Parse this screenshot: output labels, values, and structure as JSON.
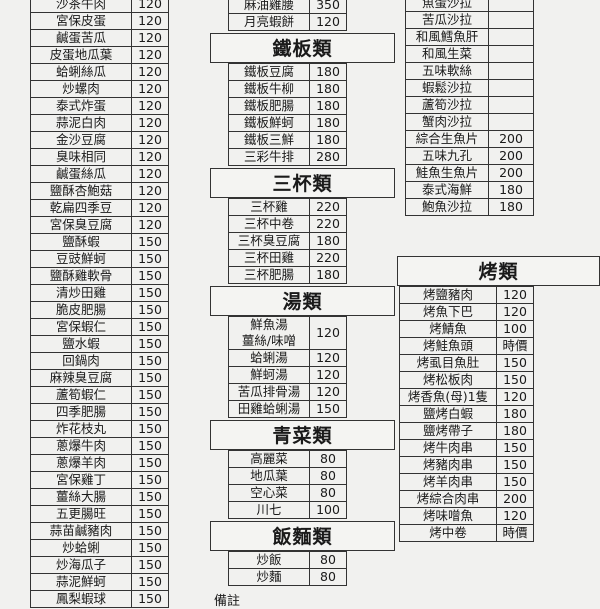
{
  "left": {
    "items": [
      {
        "name": "沙茶牛肉",
        "price": 120
      },
      {
        "name": "宮保皮蛋",
        "price": 120
      },
      {
        "name": "鹹蛋苦瓜",
        "price": 120
      },
      {
        "name": "皮蛋地瓜葉",
        "price": 120
      },
      {
        "name": "蛤蜊絲瓜",
        "price": 120
      },
      {
        "name": "炒螺肉",
        "price": 120
      },
      {
        "name": "泰式炸蛋",
        "price": 120
      },
      {
        "name": "蒜泥白肉",
        "price": 120
      },
      {
        "name": "金沙豆腐",
        "price": 120
      },
      {
        "name": "臭味相同",
        "price": 120
      },
      {
        "name": "鹹蛋絲瓜",
        "price": 120
      },
      {
        "name": "鹽酥杏鮑菇",
        "price": 120
      },
      {
        "name": "乾扁四季豆",
        "price": 120
      },
      {
        "name": "宮保臭豆腐",
        "price": 120
      },
      {
        "name": "鹽酥蝦",
        "price": 150
      },
      {
        "name": "豆豉鮮蚵",
        "price": 150
      },
      {
        "name": "鹽酥雞軟骨",
        "price": 150
      },
      {
        "name": "清炒田雞",
        "price": 150
      },
      {
        "name": "脆皮肥腸",
        "price": 150
      },
      {
        "name": "宮保蝦仁",
        "price": 150
      },
      {
        "name": "鹽水蝦",
        "price": 150
      },
      {
        "name": "回鍋肉",
        "price": 150
      },
      {
        "name": "麻辣臭豆腐",
        "price": 150
      },
      {
        "name": "蘆筍蝦仁",
        "price": 150
      },
      {
        "name": "四季肥腸",
        "price": 150
      },
      {
        "name": "炸花枝丸",
        "price": 150
      },
      {
        "name": "蔥爆牛肉",
        "price": 150
      },
      {
        "name": "蔥爆羊肉",
        "price": 150
      },
      {
        "name": "宮保雞丁",
        "price": 150
      },
      {
        "name": "薑絲大腸",
        "price": 150
      },
      {
        "name": "五更腸旺",
        "price": 150
      },
      {
        "name": "蒜苗鹹豬肉",
        "price": 150
      },
      {
        "name": "炒蛤蜊",
        "price": 150
      },
      {
        "name": "炒海瓜子",
        "price": 150
      },
      {
        "name": "蒜泥鮮蚵",
        "price": 150
      },
      {
        "name": "鳳梨蝦球",
        "price": 150
      }
    ]
  },
  "middle": {
    "top_items": [
      {
        "name": "麻油雞腰",
        "price": 350
      },
      {
        "name": "月亮蝦餅",
        "price": 120
      }
    ],
    "sections": [
      {
        "title": "鐵板類",
        "items": [
          {
            "name": "鐵板豆腐",
            "price": 180
          },
          {
            "name": "鐵板牛柳",
            "price": 180
          },
          {
            "name": "鐵板肥腸",
            "price": 180
          },
          {
            "name": "鐵板鮮蚵",
            "price": 180
          },
          {
            "name": "鐵板三鮮",
            "price": 180
          },
          {
            "name": "三彩牛排",
            "price": 280
          }
        ]
      },
      {
        "title": "三杯類",
        "items": [
          {
            "name": "三杯雞",
            "price": 220
          },
          {
            "name": "三杯中卷",
            "price": 220
          },
          {
            "name": "三杯臭豆腐",
            "price": 180
          },
          {
            "name": "三杯田雞",
            "price": 220
          },
          {
            "name": "三杯肥腸",
            "price": 180
          }
        ]
      },
      {
        "title": "湯類",
        "items": [
          {
            "name": "鮮魚湯",
            "sub": "薑絲/味噌",
            "price": 120
          },
          {
            "name": "蛤蜊湯",
            "price": 120
          },
          {
            "name": "鮮蚵湯",
            "price": 120
          },
          {
            "name": "苦瓜排骨湯",
            "price": 120
          },
          {
            "name": "田雞蛤蜊湯",
            "price": 150
          }
        ]
      },
      {
        "title": "青菜類",
        "items": [
          {
            "name": "高麗菜",
            "price": 80
          },
          {
            "name": "地瓜葉",
            "price": 80
          },
          {
            "name": "空心菜",
            "price": 80
          },
          {
            "name": "川七",
            "price": 100
          }
        ]
      },
      {
        "title": "飯麵類",
        "items": [
          {
            "name": "炒飯",
            "price": 80
          },
          {
            "name": "炒麵",
            "price": 80
          }
        ]
      }
    ],
    "note": "備註"
  },
  "right": {
    "top_items": [
      {
        "name": "魚蛋沙拉"
      },
      {
        "name": "苦瓜沙拉"
      },
      {
        "name": "和風鱈魚肝"
      },
      {
        "name": "和風生菜"
      },
      {
        "name": "五味軟絲"
      },
      {
        "name": "蝦鬆沙拉"
      },
      {
        "name": "蘆筍沙拉"
      },
      {
        "name": "蟹肉沙拉"
      },
      {
        "name": "綜合生魚片",
        "price": 200
      },
      {
        "name": "五味九孔",
        "price": 200
      },
      {
        "name": "鮭魚生魚片",
        "price": 200
      },
      {
        "name": "泰式海鮮",
        "price": 180
      },
      {
        "name": "鮑魚沙拉",
        "price": 180
      }
    ],
    "sections": [
      {
        "title": "烤類",
        "items": [
          {
            "name": "烤鹽豬肉",
            "price": 120
          },
          {
            "name": "烤魚下巴",
            "price": 120
          },
          {
            "name": "烤鯖魚",
            "price": 100
          },
          {
            "name": "烤鮭魚頭",
            "price": "時價"
          },
          {
            "name": "烤虱目魚肚",
            "price": 150
          },
          {
            "name": "烤松板肉",
            "price": 150
          },
          {
            "name": "烤香魚(母)1隻",
            "price": 120
          },
          {
            "name": "鹽烤白蝦",
            "price": 180
          },
          {
            "name": "鹽烤帶子",
            "price": 180
          },
          {
            "name": "烤牛肉串",
            "price": 150
          },
          {
            "name": "烤豬肉串",
            "price": 150
          },
          {
            "name": "烤羊肉串",
            "price": 150
          },
          {
            "name": "烤綜合肉串",
            "price": 200
          },
          {
            "name": "烤味噌魚",
            "price": 120
          },
          {
            "name": "烤中卷",
            "price": "時價"
          }
        ]
      }
    ]
  }
}
